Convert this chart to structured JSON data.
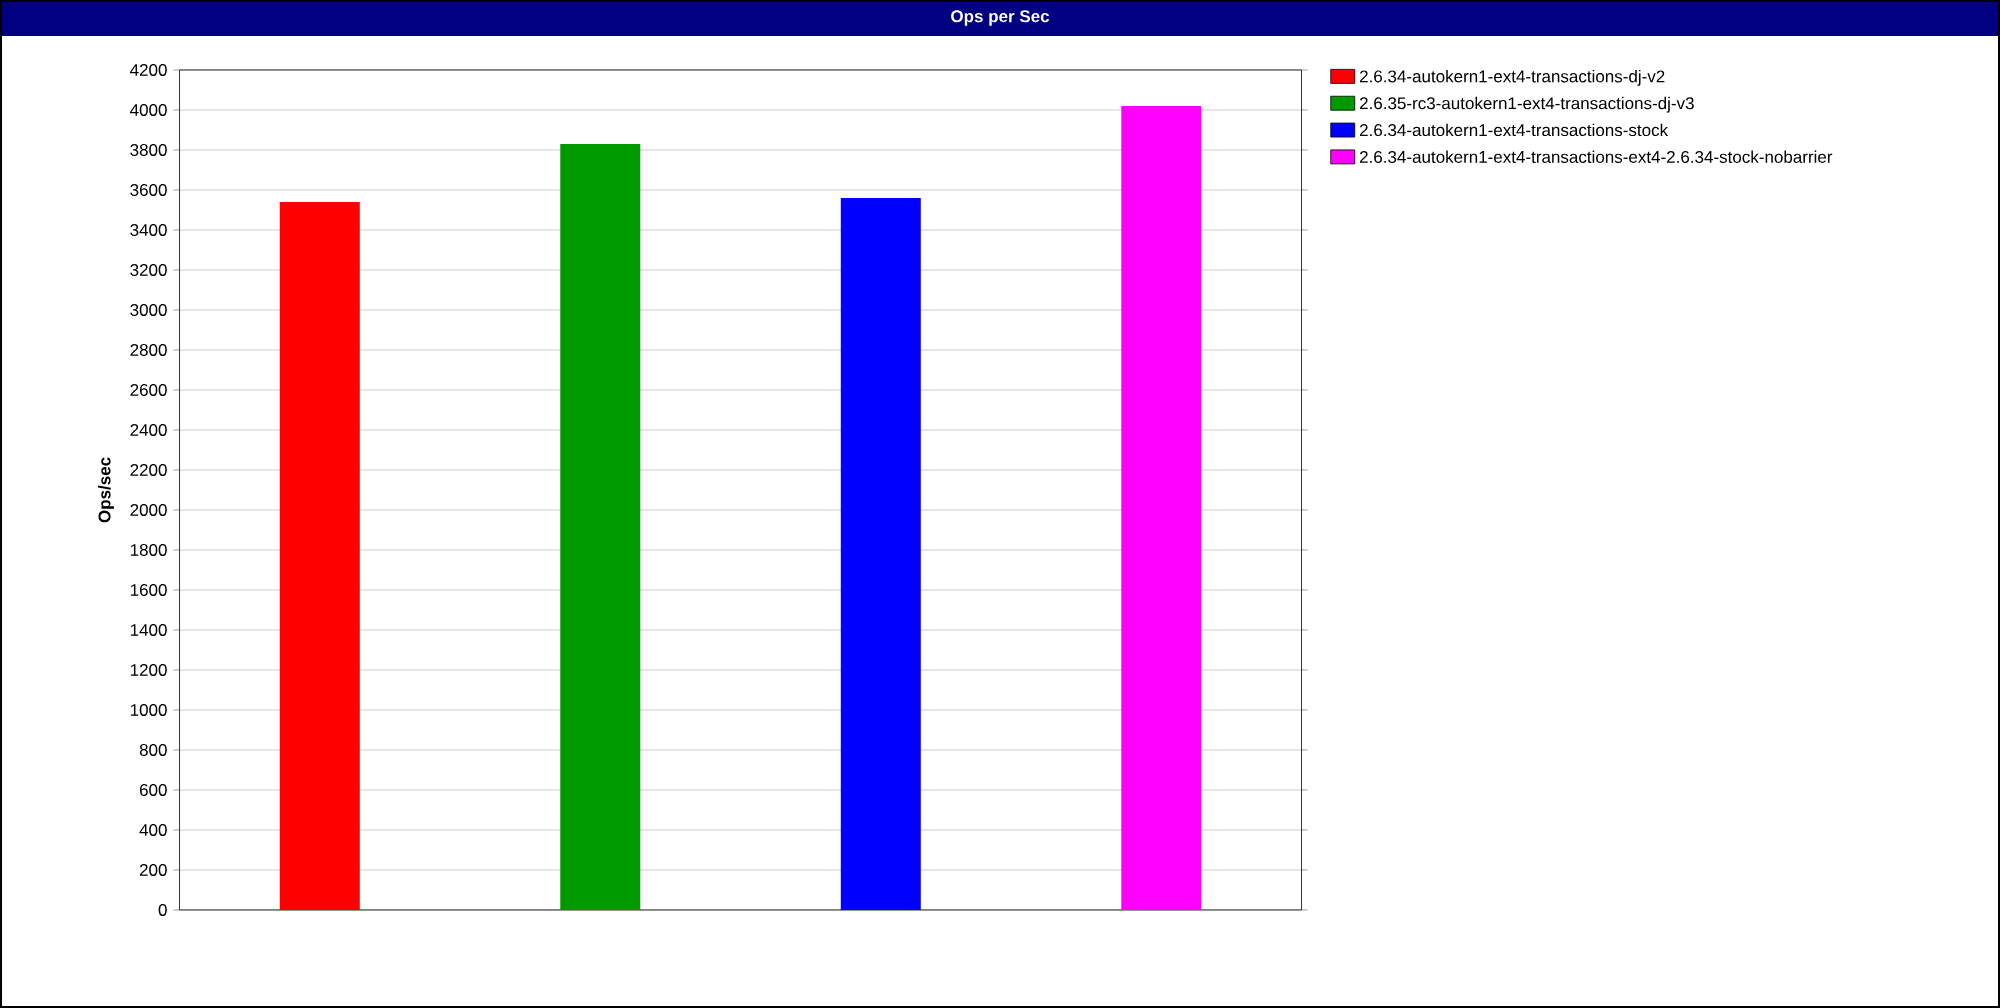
{
  "chart_data": {
    "type": "bar",
    "title": "Ops per Sec",
    "ylabel": "Ops/sec",
    "categories": [
      null,
      null,
      null,
      null
    ],
    "series": [
      {
        "name": "2.6.34-autokern1-ext4-transactions-dj-v2",
        "color": "#ff0000",
        "values": [
          3540,
          null,
          null,
          null
        ]
      },
      {
        "name": "2.6.35-rc3-autokern1-ext4-transactions-dj-v3",
        "color": "#009900",
        "values": [
          null,
          3830,
          null,
          null
        ]
      },
      {
        "name": "2.6.34-autokern1-ext4-transactions-stock",
        "color": "#0000ff",
        "values": [
          null,
          null,
          3560,
          null
        ]
      },
      {
        "name": "2.6.34-autokern1-ext4-transactions-ext4-2.6.34-stock-nobarrier",
        "color": "#ff00ff",
        "values": [
          null,
          null,
          null,
          4020
        ]
      }
    ],
    "ylim": [
      0,
      4200
    ],
    "yticks": [
      0,
      200,
      400,
      600,
      800,
      1000,
      1200,
      1400,
      1600,
      1800,
      2000,
      2200,
      2400,
      2600,
      2800,
      3000,
      3200,
      3400,
      3600,
      3800,
      4000,
      4200
    ],
    "grid": "y",
    "legend": "right"
  }
}
